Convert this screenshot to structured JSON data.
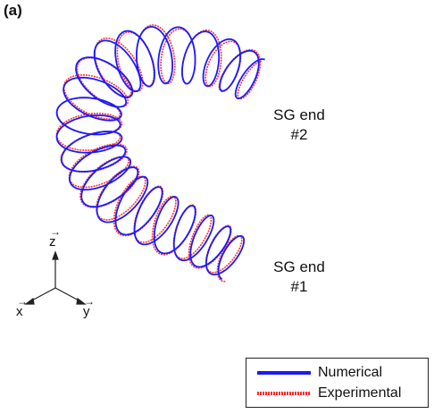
{
  "panel_label": "(a)",
  "end_labels": {
    "end2_line1": "SG end",
    "end2_line2": "#2",
    "end1_line1": "SG end",
    "end1_line2": "#1"
  },
  "axes": {
    "z": "z",
    "x": "x",
    "y": "y"
  },
  "legend": {
    "items": [
      {
        "label": "Numerical",
        "color": "#1a1aff",
        "style": "solid"
      },
      {
        "label": "Experimental",
        "color": "#ff2a2a",
        "style": "dotted"
      }
    ]
  },
  "colors": {
    "numerical": "#1a1aff",
    "experimental": "#ff3333"
  }
}
